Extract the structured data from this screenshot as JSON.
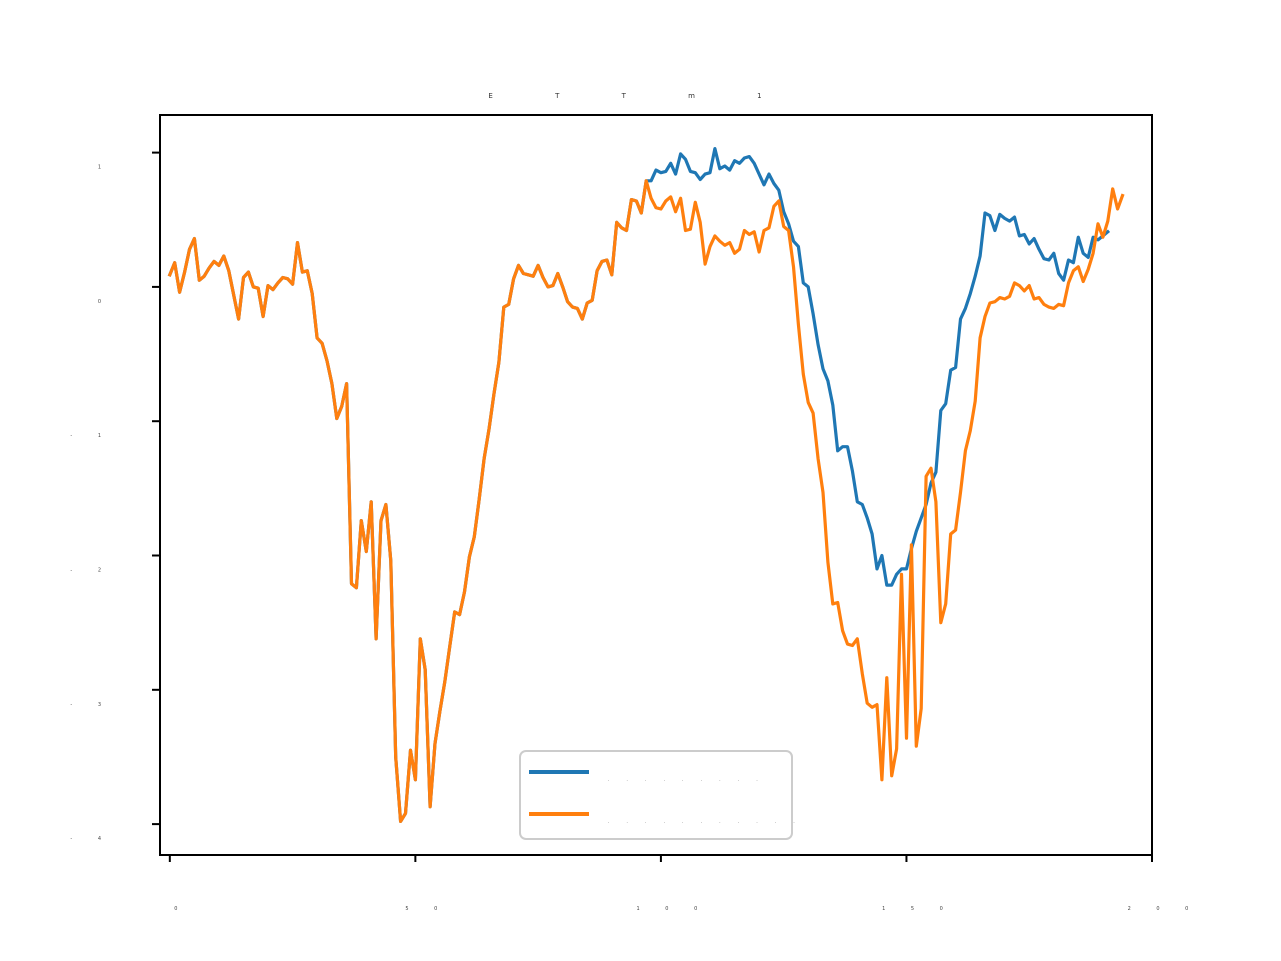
{
  "chart_data": {
    "type": "line",
    "title": "E T T m 1",
    "xlabel": "",
    "ylabel": "",
    "xlim": [
      -2,
      200
    ],
    "ylim": [
      -4.23,
      1.28
    ],
    "x_ticks": [
      0,
      50,
      100,
      150,
      200
    ],
    "x_tick_labels": [
      "0",
      "5 0",
      "1 0 0",
      "1 5 0",
      "2 0 0"
    ],
    "y_ticks": [
      1,
      0,
      -1,
      -2,
      -3,
      -4
    ],
    "y_tick_labels": [
      "1",
      "0",
      "- 1",
      "- 2",
      "- 3",
      "- 4"
    ],
    "grid": false,
    "legend_position": "lower-center",
    "series": [
      {
        "name": "· · · · · · · · ·",
        "color": "#1f77b4",
        "x_start": 0,
        "values": [
          0.09,
          0.18,
          -0.04,
          0.11,
          0.28,
          0.36,
          0.05,
          0.08,
          0.14,
          0.19,
          0.16,
          0.23,
          0.12,
          -0.06,
          -0.24,
          0.07,
          0.11,
          0.0,
          -0.01,
          -0.22,
          0.01,
          -0.02,
          0.03,
          0.07,
          0.06,
          0.02,
          0.33,
          0.11,
          0.12,
          -0.05,
          -0.38,
          -0.42,
          -0.55,
          -0.72,
          -0.98,
          -0.89,
          -0.72,
          -2.21,
          -2.24,
          -1.74,
          -1.97,
          -1.6,
          -2.62,
          -1.74,
          -1.62,
          -2.04,
          -3.5,
          -3.98,
          -3.92,
          -3.45,
          -3.67,
          -2.62,
          -2.85,
          -3.87,
          -3.4,
          -3.16,
          -2.94,
          -2.68,
          -2.42,
          -2.44,
          -2.27,
          -2.01,
          -1.86,
          -1.58,
          -1.28,
          -1.06,
          -0.8,
          -0.56,
          -0.15,
          -0.13,
          0.06,
          0.16,
          0.1,
          0.09,
          0.08,
          0.16,
          0.07,
          0.0,
          0.01,
          0.1,
          0.0,
          -0.11,
          -0.15,
          -0.16,
          -0.24,
          -0.12,
          -0.1,
          0.12,
          0.19,
          0.2,
          0.09,
          0.48,
          0.44,
          0.42,
          0.65,
          0.64,
          0.55,
          0.79,
          0.79,
          0.87,
          0.85,
          0.86,
          0.92,
          0.84,
          0.99,
          0.95,
          0.86,
          0.85,
          0.8,
          0.84,
          0.85,
          1.03,
          0.88,
          0.9,
          0.87,
          0.94,
          0.92,
          0.96,
          0.97,
          0.92,
          0.84,
          0.76,
          0.84,
          0.77,
          0.72,
          0.56,
          0.47,
          0.34,
          0.3,
          0.03,
          0.0,
          -0.2,
          -0.43,
          -0.61,
          -0.7,
          -0.88,
          -1.22,
          -1.19,
          -1.19,
          -1.37,
          -1.6,
          -1.62,
          -1.72,
          -1.84,
          -2.1,
          -2.0,
          -2.22,
          -2.22,
          -2.14,
          -2.1,
          -2.1,
          -1.95,
          -1.82,
          -1.72,
          -1.62,
          -1.46,
          -1.38,
          -0.92,
          -0.87,
          -0.62,
          -0.6,
          -0.24,
          -0.16,
          -0.05,
          0.08,
          0.23,
          0.55,
          0.53,
          0.42,
          0.54,
          0.51,
          0.49,
          0.52,
          0.38,
          0.39,
          0.32,
          0.36,
          0.28,
          0.21,
          0.2,
          0.25,
          0.1,
          0.05,
          0.2,
          0.18,
          0.37,
          0.25,
          0.22,
          0.37,
          0.35,
          0.38,
          0.41
        ]
      },
      {
        "name": "· · · · · · · · · · ·",
        "color": "#ff7f0e",
        "x_start": 0,
        "values": [
          0.09,
          0.18,
          -0.04,
          0.11,
          0.28,
          0.36,
          0.05,
          0.08,
          0.14,
          0.19,
          0.16,
          0.23,
          0.12,
          -0.06,
          -0.24,
          0.07,
          0.11,
          0.0,
          -0.01,
          -0.22,
          0.01,
          -0.02,
          0.03,
          0.07,
          0.06,
          0.02,
          0.33,
          0.11,
          0.12,
          -0.05,
          -0.38,
          -0.42,
          -0.55,
          -0.72,
          -0.98,
          -0.89,
          -0.72,
          -2.21,
          -2.24,
          -1.74,
          -1.97,
          -1.6,
          -2.62,
          -1.74,
          -1.62,
          -2.04,
          -3.5,
          -3.98,
          -3.92,
          -3.45,
          -3.67,
          -2.62,
          -2.85,
          -3.87,
          -3.4,
          -3.16,
          -2.94,
          -2.68,
          -2.42,
          -2.44,
          -2.27,
          -2.01,
          -1.86,
          -1.58,
          -1.28,
          -1.06,
          -0.8,
          -0.56,
          -0.15,
          -0.13,
          0.06,
          0.16,
          0.1,
          0.09,
          0.08,
          0.16,
          0.07,
          0.0,
          0.01,
          0.1,
          0.0,
          -0.11,
          -0.15,
          -0.16,
          -0.24,
          -0.12,
          -0.1,
          0.12,
          0.19,
          0.2,
          0.09,
          0.48,
          0.44,
          0.42,
          0.65,
          0.64,
          0.55,
          0.79,
          0.66,
          0.59,
          0.58,
          0.64,
          0.67,
          0.56,
          0.66,
          0.42,
          0.43,
          0.63,
          0.48,
          0.17,
          0.3,
          0.38,
          0.34,
          0.31,
          0.33,
          0.25,
          0.28,
          0.42,
          0.39,
          0.41,
          0.26,
          0.42,
          0.44,
          0.6,
          0.64,
          0.45,
          0.42,
          0.15,
          -0.28,
          -0.65,
          -0.86,
          -0.94,
          -1.28,
          -1.53,
          -2.05,
          -2.36,
          -2.35,
          -2.56,
          -2.66,
          -2.67,
          -2.62,
          -2.88,
          -3.1,
          -3.13,
          -3.11,
          -3.67,
          -2.91,
          -3.64,
          -3.44,
          -2.14,
          -3.36,
          -1.92,
          -3.42,
          -3.14,
          -1.41,
          -1.35,
          -1.6,
          -2.5,
          -2.36,
          -1.84,
          -1.81,
          -1.53,
          -1.22,
          -1.07,
          -0.85,
          -0.38,
          -0.22,
          -0.12,
          -0.11,
          -0.08,
          -0.09,
          -0.07,
          0.03,
          0.01,
          -0.03,
          0.01,
          -0.09,
          -0.08,
          -0.13,
          -0.15,
          -0.16,
          -0.13,
          -0.14,
          0.03,
          0.12,
          0.15,
          0.04,
          0.13,
          0.25,
          0.47,
          0.37,
          0.49,
          0.73,
          0.58,
          0.68
        ]
      }
    ]
  }
}
